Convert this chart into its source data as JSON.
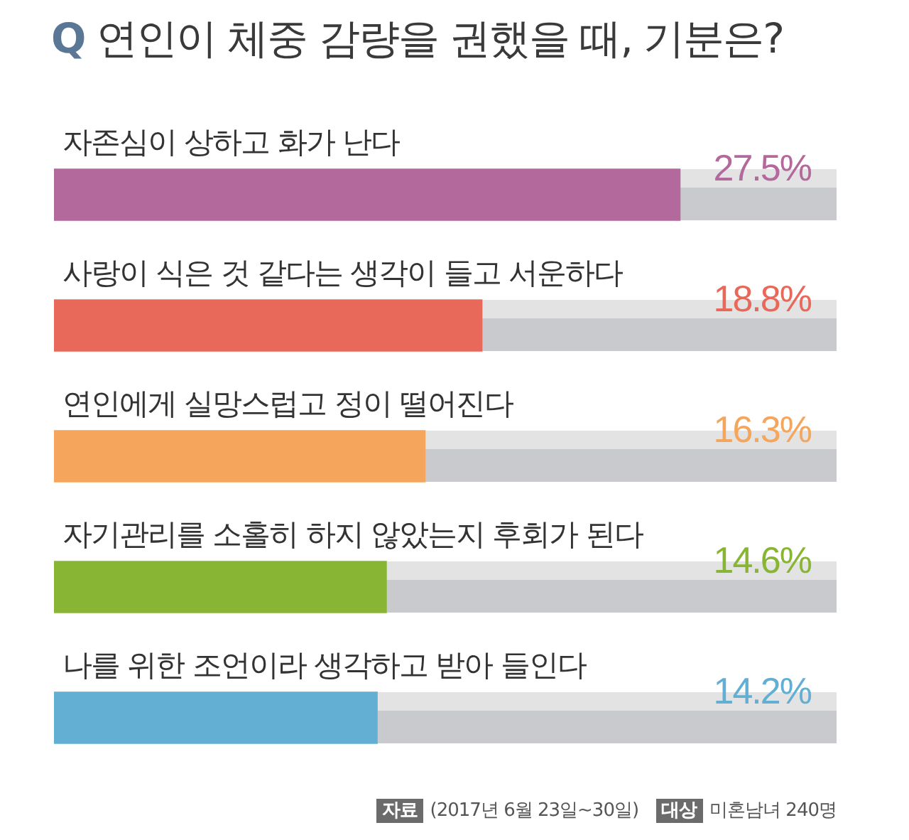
{
  "chart_data": {
    "type": "bar",
    "orientation": "horizontal",
    "title": "Q 연인이 체중 감량을 권했을 때, 기분은?",
    "categories": [
      "자존심이 상하고 화가 난다",
      "사랑이 식은 것 같다는 생각이 들고 서운하다",
      "연인에게 실망스럽고 정이 떨어진다",
      "자기관리를 소홀히 하지 않았는지 후회가 된다",
      "나를 위한 조언이라 생각하고 받아 들인다"
    ],
    "values": [
      27.5,
      18.8,
      16.3,
      14.6,
      14.2
    ],
    "colors": [
      "#b3699c",
      "#e8685a",
      "#f5a55c",
      "#88b634",
      "#62afd3"
    ],
    "value_labels": [
      "27.5%",
      "18.8%",
      "16.3%",
      "14.6%",
      "14.2%"
    ],
    "tick_labels": "y",
    "annotations": [
      "자료 (2017년 6월 23일~30일)",
      "대상 미혼남녀 240명"
    ]
  }
}
